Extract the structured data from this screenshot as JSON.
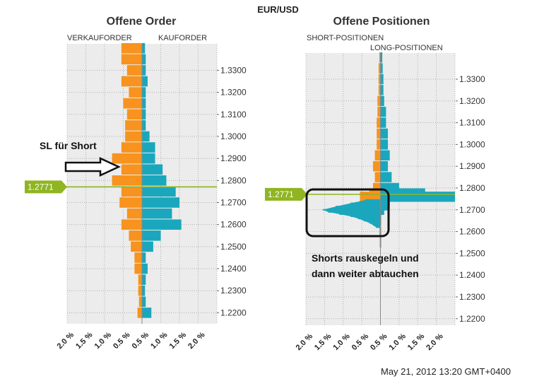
{
  "header": {
    "pair": "EUR/USD"
  },
  "timestamp": "May 21, 2012 13:20 GMT+0400",
  "colors": {
    "sell": "#f7931e",
    "buy": "#1aa7bd",
    "price": "#8fb521",
    "grid": "#b0b0b0",
    "plot_bg": "#ececec"
  },
  "annotations": {
    "sl_text": "SL für Short",
    "shorts_line1": "Shorts rauskegeln und",
    "shorts_line2": "dann weiter abtauchen"
  },
  "chart_data": [
    {
      "type": "bar",
      "title": "Offene Order",
      "left_label": "VERKAUFORDER",
      "right_label": "KAUFORDER",
      "x_ticks": [
        "2.0 %",
        "1.5 %",
        "1.0 %",
        "0.5 %",
        "0.5 %",
        "1.0 %",
        "1.5 %",
        "2.0 %"
      ],
      "xlim": [
        -2.0,
        2.0
      ],
      "ylim": [
        1.215,
        1.342
      ],
      "y_ticks": [
        "1.3300",
        "1.3200",
        "1.3100",
        "1.3000",
        "1.2900",
        "1.2800",
        "1.2700",
        "1.2600",
        "1.2500",
        "1.2400",
        "1.2300",
        "1.2200"
      ],
      "current_price": 1.2771,
      "current_price_label": "1.2771",
      "bars": [
        {
          "p": 1.34,
          "sell": 0.55,
          "buy": 0.08
        },
        {
          "p": 1.335,
          "sell": 0.55,
          "buy": 0.1
        },
        {
          "p": 1.33,
          "sell": 0.4,
          "buy": 0.1
        },
        {
          "p": 1.325,
          "sell": 0.55,
          "buy": 0.15
        },
        {
          "p": 1.32,
          "sell": 0.35,
          "buy": 0.1
        },
        {
          "p": 1.315,
          "sell": 0.5,
          "buy": 0.1
        },
        {
          "p": 1.31,
          "sell": 0.4,
          "buy": 0.1
        },
        {
          "p": 1.305,
          "sell": 0.45,
          "buy": 0.1
        },
        {
          "p": 1.3,
          "sell": 0.45,
          "buy": 0.2
        },
        {
          "p": 1.295,
          "sell": 0.55,
          "buy": 0.35
        },
        {
          "p": 1.29,
          "sell": 0.8,
          "buy": 0.35
        },
        {
          "p": 1.285,
          "sell": 0.55,
          "buy": 0.55
        },
        {
          "p": 1.28,
          "sell": 0.8,
          "buy": 0.65
        },
        {
          "p": 1.275,
          "sell": 0.55,
          "buy": 0.9
        },
        {
          "p": 1.27,
          "sell": 0.6,
          "buy": 1.0
        },
        {
          "p": 1.265,
          "sell": 0.4,
          "buy": 0.8
        },
        {
          "p": 1.26,
          "sell": 0.55,
          "buy": 1.05
        },
        {
          "p": 1.255,
          "sell": 0.35,
          "buy": 0.5
        },
        {
          "p": 1.25,
          "sell": 0.3,
          "buy": 0.3
        },
        {
          "p": 1.245,
          "sell": 0.2,
          "buy": 0.1
        },
        {
          "p": 1.24,
          "sell": 0.2,
          "buy": 0.15
        },
        {
          "p": 1.235,
          "sell": 0.1,
          "buy": 0.1
        },
        {
          "p": 1.23,
          "sell": 0.1,
          "buy": 0.08
        },
        {
          "p": 1.225,
          "sell": 0.08,
          "buy": 0.1
        },
        {
          "p": 1.22,
          "sell": 0.12,
          "buy": 0.25
        }
      ]
    },
    {
      "type": "bar",
      "title": "Offene Positionen",
      "left_label": "SHORT-POSITIONEN",
      "right_label": "LONG-POSITIONEN",
      "x_ticks": [
        "2.0 %",
        "1.5 %",
        "1.0 %",
        "0.5 %",
        "0.5 %",
        "1.0 %",
        "1.5 %",
        "2.0 %"
      ],
      "xlim": [
        -2.0,
        2.0
      ],
      "ylim": [
        1.217,
        1.342
      ],
      "y_ticks": [
        "1.3300",
        "1.3200",
        "1.3100",
        "1.3000",
        "1.2900",
        "1.2800",
        "1.2700",
        "1.2600",
        "1.2500",
        "1.2400",
        "1.2300",
        "1.2200"
      ],
      "current_price": 1.2771,
      "current_price_label": "1.2771",
      "bars": [
        {
          "p": 1.34,
          "short": 0.03,
          "long": 0.05
        },
        {
          "p": 1.335,
          "short": 0.05,
          "long": 0.06
        },
        {
          "p": 1.33,
          "short": 0.05,
          "long": 0.08
        },
        {
          "p": 1.325,
          "short": 0.05,
          "long": 0.08
        },
        {
          "p": 1.32,
          "short": 0.08,
          "long": 0.1
        },
        {
          "p": 1.315,
          "short": 0.08,
          "long": 0.15
        },
        {
          "p": 1.31,
          "short": 0.1,
          "long": 0.15
        },
        {
          "p": 1.305,
          "short": 0.1,
          "long": 0.2
        },
        {
          "p": 1.3,
          "short": 0.1,
          "long": 0.2
        },
        {
          "p": 1.295,
          "short": 0.15,
          "long": 0.25
        },
        {
          "p": 1.29,
          "short": 0.2,
          "long": 0.2
        },
        {
          "p": 1.285,
          "short": 0.15,
          "long": 0.3
        },
        {
          "p": 1.28,
          "short": 0.2,
          "long": 0.5
        },
        {
          "p": 1.2775,
          "short": 0.3,
          "long": 1.2
        },
        {
          "p": 1.276,
          "short": 0.55,
          "long": 2.0
        },
        {
          "p": 1.274,
          "short": 0.25,
          "long": 0.25
        },
        {
          "p": 1.272,
          "short": 0.2,
          "long": 0.25
        },
        {
          "p": 1.27,
          "short": 0.1,
          "long": 0.1
        },
        {
          "p": 1.268,
          "short": 0.05,
          "long": 0.02
        },
        {
          "p": 1.265,
          "short": 0.05,
          "long": 0.02
        },
        {
          "p": 1.26,
          "short": 0.03,
          "long": 0.01
        },
        {
          "p": 1.255,
          "short": 0.02,
          "long": 0.01
        }
      ],
      "short_wedge": [
        {
          "p": 1.2745,
          "v": 0.4
        },
        {
          "p": 1.273,
          "v": 0.8
        },
        {
          "p": 1.2715,
          "v": 1.2
        },
        {
          "p": 1.27,
          "v": 1.55
        },
        {
          "p": 1.269,
          "v": 1.4
        },
        {
          "p": 1.268,
          "v": 1.1
        },
        {
          "p": 1.267,
          "v": 0.8
        },
        {
          "p": 1.266,
          "v": 0.6
        },
        {
          "p": 1.265,
          "v": 0.45
        },
        {
          "p": 1.264,
          "v": 0.3
        },
        {
          "p": 1.263,
          "v": 0.2
        },
        {
          "p": 1.262,
          "v": 0.12
        }
      ]
    }
  ]
}
